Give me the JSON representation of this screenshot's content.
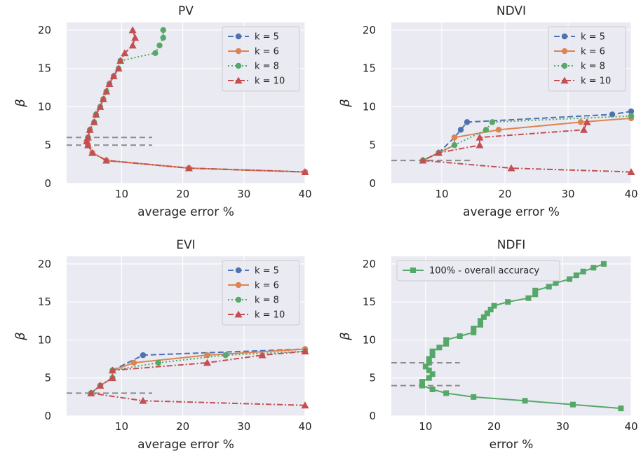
{
  "colors": {
    "k5": "#4c72b0",
    "k6": "#dd8452",
    "k8": "#55a868",
    "k10": "#c44e52",
    "bg": "#eaeaf2",
    "grid": "#ffffff",
    "ref": "#8c8c8c"
  },
  "chart_data": [
    {
      "type": "line",
      "title": "PV",
      "xlabel": "average error %",
      "ylabel": "β",
      "xlim": [
        1,
        40
      ],
      "ylim": [
        0,
        21
      ],
      "xticks": [
        10,
        20,
        30,
        40
      ],
      "yticks": [
        0,
        5,
        10,
        15,
        20
      ],
      "grid": true,
      "legend": "top-right",
      "ref_lines": [
        {
          "y": 6,
          "x0": 1,
          "x1": 15
        },
        {
          "y": 5,
          "x0": 1,
          "x1": 15
        }
      ],
      "series": [
        {
          "name": "k = 5",
          "color": "#4c72b0",
          "dash": "8,4",
          "marker": "circle",
          "legend": true,
          "points": [
            [
              4.5,
              6
            ],
            [
              4.3,
              5.5
            ],
            [
              4.5,
              5
            ],
            [
              5.2,
              4
            ],
            [
              7.5,
              3
            ],
            [
              21,
              2
            ],
            [
              40,
              1.5
            ]
          ]
        },
        {
          "name": "k = 6",
          "color": "#dd8452",
          "dash": "",
          "marker": "circle",
          "legend": true,
          "points": [
            [
              4.5,
              6
            ],
            [
              4.3,
              5.5
            ],
            [
              4.5,
              5
            ],
            [
              5.2,
              4
            ],
            [
              7.5,
              3
            ],
            [
              21,
              2
            ],
            [
              40,
              1.5
            ]
          ]
        },
        {
          "name": "k = 8",
          "color": "#55a868",
          "dash": "2,3",
          "marker": "circle",
          "legend": true,
          "points": [
            [
              4.5,
              6
            ],
            [
              4.8,
              7
            ],
            [
              5.5,
              8
            ],
            [
              5.8,
              9
            ],
            [
              6.5,
              10
            ],
            [
              7,
              11
            ],
            [
              7.5,
              12
            ],
            [
              8,
              13
            ],
            [
              8.7,
              14
            ],
            [
              9.5,
              15
            ],
            [
              9.8,
              16
            ],
            [
              15.5,
              17
            ],
            [
              16.2,
              18
            ],
            [
              16.8,
              19
            ],
            [
              16.8,
              20
            ]
          ]
        },
        {
          "name": "k = 10",
          "color": "#c44e52",
          "dash": "8,3,2,3",
          "marker": "triangle",
          "legend": true,
          "points": [
            [
              11.8,
              20
            ],
            [
              12.2,
              19
            ],
            [
              11.8,
              18
            ],
            [
              10.5,
              17
            ],
            [
              9.8,
              16
            ],
            [
              9.5,
              15
            ],
            [
              8.7,
              14
            ],
            [
              8,
              13
            ],
            [
              7.5,
              12
            ],
            [
              7,
              11
            ],
            [
              6.5,
              10
            ],
            [
              5.8,
              9
            ],
            [
              5.5,
              8
            ],
            [
              4.8,
              7
            ],
            [
              4.5,
              6
            ],
            [
              4.3,
              5.5
            ],
            [
              4.5,
              5
            ],
            [
              5.2,
              4
            ],
            [
              7.5,
              3
            ],
            [
              21,
              2
            ],
            [
              40,
              1.5
            ]
          ]
        }
      ]
    },
    {
      "type": "line",
      "title": "NDVI",
      "xlabel": "average error %",
      "ylabel": "β",
      "xlim": [
        2,
        40
      ],
      "ylim": [
        0,
        21
      ],
      "xticks": [
        10,
        20,
        30,
        40
      ],
      "yticks": [
        0,
        5,
        10,
        15,
        20
      ],
      "grid": true,
      "legend": "top-right",
      "ref_lines": [
        {
          "y": 3,
          "x0": 2,
          "x1": 15
        }
      ],
      "series": [
        {
          "name": "k = 5",
          "color": "#4c72b0",
          "dash": "8,4",
          "marker": "circle",
          "legend": true,
          "points": [
            [
              7,
              3
            ],
            [
              9.5,
              4
            ],
            [
              12,
              6
            ],
            [
              13,
              7
            ],
            [
              14,
              8
            ],
            [
              37,
              9
            ],
            [
              40,
              9.4
            ]
          ]
        },
        {
          "name": "k = 6",
          "color": "#dd8452",
          "dash": "",
          "marker": "circle",
          "legend": true,
          "points": [
            [
              7,
              3
            ],
            [
              9.5,
              4
            ],
            [
              12,
              5
            ],
            [
              12,
              6
            ],
            [
              19,
              7
            ],
            [
              32,
              8
            ],
            [
              40,
              8.5
            ]
          ]
        },
        {
          "name": "k = 8",
          "color": "#55a868",
          "dash": "2,3",
          "marker": "circle",
          "legend": true,
          "points": [
            [
              7,
              3
            ],
            [
              9.5,
              4
            ],
            [
              12,
              5
            ],
            [
              17,
              7
            ],
            [
              18,
              8
            ],
            [
              40,
              8.8
            ]
          ]
        },
        {
          "name": "k = 10",
          "color": "#c44e52",
          "dash": "8,3,2,3",
          "marker": "triangle",
          "legend": true,
          "points": [
            [
              40,
              1.5
            ],
            [
              21,
              2
            ],
            [
              7,
              3
            ],
            [
              9.5,
              4
            ],
            [
              16,
              5
            ],
            [
              16,
              6
            ],
            [
              32.5,
              7
            ],
            [
              33,
              8
            ]
          ]
        }
      ]
    },
    {
      "type": "line",
      "title": "EVI",
      "xlabel": "average error %",
      "ylabel": "β",
      "xlim": [
        1,
        40
      ],
      "ylim": [
        0,
        21
      ],
      "xticks": [
        10,
        20,
        30,
        40
      ],
      "yticks": [
        0,
        5,
        10,
        15,
        20
      ],
      "grid": true,
      "legend": "top-right",
      "ref_lines": [
        {
          "y": 3,
          "x0": 1,
          "x1": 15
        }
      ],
      "series": [
        {
          "name": "k = 5",
          "color": "#4c72b0",
          "dash": "8,4",
          "marker": "circle",
          "legend": true,
          "points": [
            [
              5,
              3
            ],
            [
              6.5,
              4
            ],
            [
              8.5,
              5
            ],
            [
              8.5,
              6
            ],
            [
              13.5,
              8
            ],
            [
              40,
              8.8
            ]
          ]
        },
        {
          "name": "k = 6",
          "color": "#dd8452",
          "dash": "",
          "marker": "circle",
          "legend": true,
          "points": [
            [
              5,
              3
            ],
            [
              6.5,
              4
            ],
            [
              8.5,
              5
            ],
            [
              8.5,
              6
            ],
            [
              12,
              7
            ],
            [
              24,
              8
            ],
            [
              40,
              8.8
            ]
          ]
        },
        {
          "name": "k = 8",
          "color": "#55a868",
          "dash": "2,3",
          "marker": "circle",
          "legend": true,
          "points": [
            [
              5,
              3
            ],
            [
              6.5,
              4
            ],
            [
              8.5,
              5
            ],
            [
              8.5,
              6
            ],
            [
              16,
              7
            ],
            [
              27,
              8
            ],
            [
              40,
              8.5
            ]
          ]
        },
        {
          "name": "k = 10",
          "color": "#c44e52",
          "dash": "8,3,2,3",
          "marker": "triangle",
          "legend": true,
          "points": [
            [
              40,
              1.4
            ],
            [
              13.5,
              2
            ],
            [
              5,
              3
            ],
            [
              6.5,
              4
            ],
            [
              8.5,
              5
            ],
            [
              8.5,
              6
            ],
            [
              24,
              7
            ],
            [
              33,
              8
            ],
            [
              40,
              8.5
            ]
          ]
        }
      ]
    },
    {
      "type": "line",
      "title": "NDFI",
      "xlabel": "error %",
      "ylabel": "β",
      "xlim": [
        5,
        40
      ],
      "ylim": [
        0,
        21
      ],
      "xticks": [
        10,
        20,
        30,
        40
      ],
      "yticks": [
        0,
        5,
        10,
        15,
        20
      ],
      "grid": true,
      "legend": "top-left",
      "ref_lines": [
        {
          "y": 7,
          "x0": 5,
          "x1": 15
        },
        {
          "y": 4,
          "x0": 5,
          "x1": 15
        }
      ],
      "series": [
        {
          "name": "100% - overall accuracy",
          "color": "#55a868",
          "dash": "",
          "marker": "square",
          "legend": true,
          "points": [
            [
              38.5,
              1
            ],
            [
              31.5,
              1.5
            ],
            [
              24.5,
              2
            ],
            [
              17,
              2.5
            ],
            [
              13,
              3
            ],
            [
              11,
              3.5
            ],
            [
              9.5,
              4
            ],
            [
              9.5,
              4.5
            ],
            [
              10.5,
              5
            ],
            [
              11,
              5.5
            ],
            [
              10.5,
              6
            ],
            [
              10,
              6.5
            ],
            [
              10.5,
              7
            ],
            [
              10.5,
              7.5
            ],
            [
              11,
              8
            ],
            [
              11,
              8.5
            ],
            [
              12,
              9
            ],
            [
              13,
              9.5
            ],
            [
              13,
              10
            ],
            [
              15,
              10.5
            ],
            [
              17,
              11
            ],
            [
              17,
              11.5
            ],
            [
              18,
              12
            ],
            [
              18,
              12.5
            ],
            [
              18.5,
              13
            ],
            [
              19,
              13.5
            ],
            [
              19.5,
              14
            ],
            [
              20,
              14.5
            ],
            [
              22,
              15
            ],
            [
              25,
              15.5
            ],
            [
              26,
              16
            ],
            [
              26,
              16.5
            ],
            [
              28,
              17
            ],
            [
              29,
              17.5
            ],
            [
              31,
              18
            ],
            [
              32,
              18.5
            ],
            [
              33,
              19
            ],
            [
              34.5,
              19.5
            ],
            [
              36,
              20
            ]
          ]
        }
      ]
    }
  ]
}
